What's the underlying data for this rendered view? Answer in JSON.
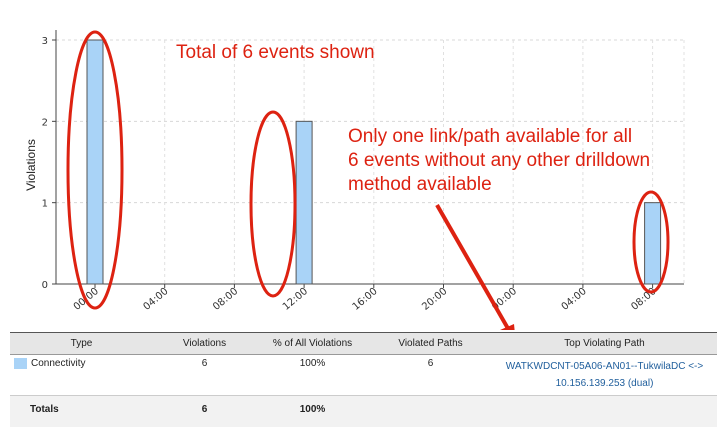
{
  "chart_data": {
    "type": "bar",
    "ylabel": "Violations",
    "yticks": [
      0,
      1,
      2,
      3
    ],
    "ylim": [
      0,
      3
    ],
    "x_tick_labels": [
      "00:00",
      "04:00",
      "08:00",
      "12:00",
      "16:00",
      "20:00",
      "00:00",
      "04:00",
      "08:00"
    ],
    "bars": [
      {
        "tick": 0,
        "value": 3
      },
      {
        "tick": 3,
        "value": 2
      },
      {
        "tick": 8,
        "value": 1
      }
    ],
    "bar_color": "#a9d3f7",
    "grid": true
  },
  "annotations": {
    "total": "Total of 6 events shown",
    "note_lines": [
      "Only one link/path available for all",
      "6 events without any other drilldown",
      "method available"
    ],
    "color": "#dd2211"
  },
  "table": {
    "headers": [
      "Type",
      "Violations",
      "% of All Violations",
      "Violated Paths",
      "Top Violating Path"
    ],
    "row": {
      "type": "Connectivity",
      "violations": "6",
      "percent": "100%",
      "paths": "6",
      "top_path_line1": "WATKWDCNT-05A06-AN01--TukwilaDC <->",
      "top_path_line2": "10.156.139.253 (dual)"
    },
    "totals": {
      "label": "Totals",
      "violations": "6",
      "percent": "100%"
    }
  }
}
